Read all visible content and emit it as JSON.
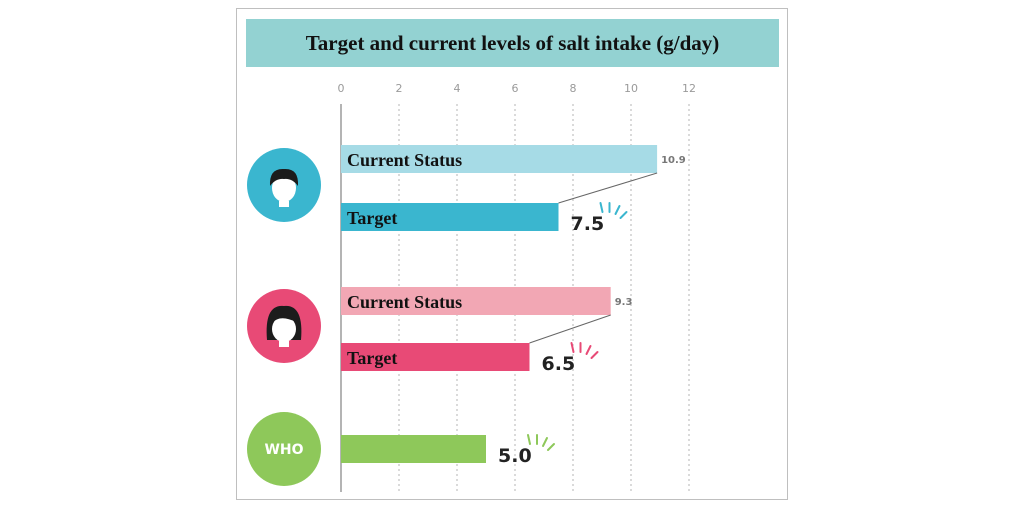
{
  "title": "Target and current levels of salt intake (g/day)",
  "colors": {
    "banner": "#93d2d2",
    "male_current": "#a6dbe6",
    "male_target": "#3ab6cf",
    "female_current": "#f2a7b4",
    "female_target": "#e84a76",
    "who": "#8ec85a"
  },
  "chart_data": {
    "type": "bar",
    "orientation": "horizontal",
    "xlim": [
      0,
      12
    ],
    "ticks": [
      "0",
      "2",
      "4",
      "6",
      "8",
      "10",
      "12"
    ],
    "grid": "vertical dotted",
    "groups": [
      {
        "icon": "male-face-icon",
        "bars": [
          {
            "label": "Current Status",
            "value": 10.9,
            "value_text": "10.9",
            "style": "current",
            "color": "#a6dbe6"
          },
          {
            "label": "Target",
            "value": 7.5,
            "value_text": "7.5",
            "style": "target",
            "color": "#3ab6cf",
            "accent": "#3ab6cf"
          }
        ]
      },
      {
        "icon": "female-face-icon",
        "bars": [
          {
            "label": "Current Status",
            "value": 9.3,
            "value_text": "9.3",
            "style": "current",
            "color": "#f2a7b4"
          },
          {
            "label": "Target",
            "value": 6.5,
            "value_text": "6.5",
            "style": "target",
            "color": "#e84a76",
            "accent": "#e84a76"
          }
        ]
      },
      {
        "icon": "who-badge",
        "icon_text": "WHO",
        "bars": [
          {
            "label": "",
            "value": 5.0,
            "value_text": "5.0",
            "style": "target",
            "color": "#8ec85a",
            "accent": "#8ec85a"
          }
        ]
      }
    ]
  }
}
